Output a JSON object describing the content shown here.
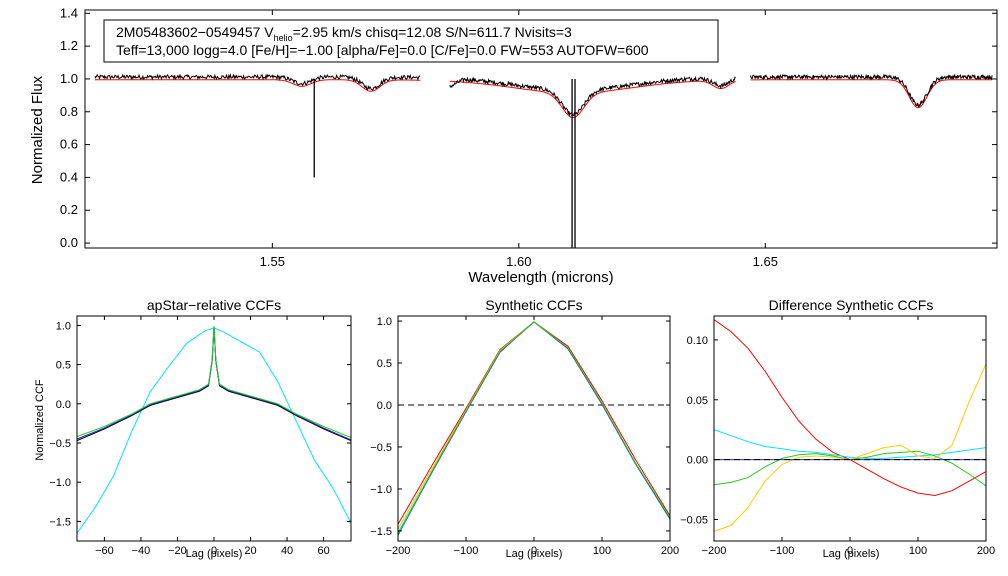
{
  "chart_data": [
    {
      "panel": "spectrum",
      "type": "line",
      "title": "",
      "xlabel": "Wavelength (microns)",
      "ylabel": "Normalized Flux",
      "xlim": [
        1.512,
        1.697
      ],
      "ylim": [
        -0.03,
        1.42
      ],
      "xticks": [
        1.55,
        1.6,
        1.65
      ],
      "xtick_labels": [
        "1.55",
        "1.60",
        "1.65"
      ],
      "yticks": [
        0.0,
        0.2,
        0.4,
        0.6,
        0.8,
        1.0,
        1.2,
        1.4
      ],
      "ytick_labels": [
        "0.0",
        "0.2",
        "0.4",
        "0.6",
        "0.8",
        "1.0",
        "1.2",
        "1.4"
      ],
      "annotation": {
        "line1_a": "2M05483602−0549457  V",
        "line1_sub": "helio",
        "line1_b": "=2.95 km/s  chisq=12.08  S/N=611.7  Nvisits=3",
        "line2": "Teff=13,000 logg=4.0 [Fe/H]=−1.00 [alpha/Fe]=0.0 [C/Fe]=0.0 FW=553 AUTOFW=600"
      },
      "chips": [
        {
          "name": "blue",
          "range": [
            1.514,
            1.58
          ]
        },
        {
          "name": "green",
          "range": [
            1.586,
            1.644
          ]
        },
        {
          "name": "red",
          "range": [
            1.647,
            1.696
          ]
        }
      ],
      "absorption_lines": [
        {
          "center": 1.556,
          "depth": 0.04,
          "width": 0.0018
        },
        {
          "center": 1.57,
          "depth": 0.07,
          "width": 0.0018
        },
        {
          "center": 1.611,
          "depth": 0.15,
          "width": 0.0022
        },
        {
          "center": 1.641,
          "depth": 0.05,
          "width": 0.0016
        },
        {
          "center": 1.681,
          "depth": 0.17,
          "width": 0.0018
        }
      ],
      "spikes": [
        {
          "x": 1.5585,
          "y": 0.4
        },
        {
          "x": 1.6108,
          "y": -0.03
        },
        {
          "x": 1.6114,
          "y": -0.03
        }
      ],
      "series": [
        {
          "name": "data",
          "color": "#000000"
        },
        {
          "name": "model",
          "color": "#ff0000"
        }
      ]
    },
    {
      "panel": "apstar_ccf",
      "type": "line",
      "title": "apStar−relative CCFs",
      "xlabel": "Lag (pixels)",
      "ylabel": "Normalized CCF",
      "xlim": [
        -75,
        75
      ],
      "ylim": [
        -1.75,
        1.12
      ],
      "xticks": [
        -60,
        -40,
        -20,
        0,
        20,
        40,
        60
      ],
      "xtick_labels": [
        "−60",
        "−40",
        "−20",
        "0",
        "20",
        "40",
        "60"
      ],
      "yticks": [
        -1.5,
        -1.0,
        -0.5,
        0.0,
        0.5,
        1.0
      ],
      "ytick_labels": [
        "−1.5",
        "−1.0",
        "−0.5",
        "0.0",
        "0.5",
        "1.0"
      ],
      "series": [
        {
          "name": "cyan",
          "color": "#00e5ff",
          "x": [
            -75,
            -65,
            -55,
            -45,
            -35,
            -25,
            -15,
            -5,
            0,
            5,
            15,
            25,
            35,
            45,
            55,
            65,
            75
          ],
          "y": [
            -1.65,
            -1.32,
            -0.92,
            -0.35,
            0.15,
            0.47,
            0.77,
            0.93,
            0.97,
            0.92,
            0.79,
            0.66,
            0.28,
            -0.22,
            -0.72,
            -1.07,
            -1.52
          ]
        },
        {
          "name": "black",
          "color": "#000000",
          "x": [
            -75,
            -60,
            -45,
            -35,
            -20,
            -8,
            -3,
            -1,
            0,
            1,
            3,
            8,
            20,
            35,
            45,
            60,
            75
          ],
          "y": [
            -0.47,
            -0.32,
            -0.15,
            -0.02,
            0.08,
            0.16,
            0.23,
            0.55,
            0.98,
            0.55,
            0.23,
            0.16,
            0.08,
            -0.02,
            -0.15,
            -0.32,
            -0.47
          ]
        },
        {
          "name": "blue",
          "color": "#2222cc",
          "x": [
            -75,
            -60,
            -45,
            -35,
            -20,
            -8,
            -3,
            -1,
            0,
            1,
            3,
            8,
            20,
            35,
            45,
            60,
            75
          ],
          "y": [
            -0.45,
            -0.31,
            -0.14,
            -0.01,
            0.09,
            0.17,
            0.24,
            0.56,
            0.99,
            0.56,
            0.24,
            0.17,
            0.09,
            -0.01,
            -0.14,
            -0.31,
            -0.46
          ]
        },
        {
          "name": "green",
          "color": "#22cc22",
          "x": [
            -75,
            -60,
            -45,
            -35,
            -20,
            -8,
            -3,
            -1,
            0,
            1,
            3,
            8,
            20,
            35,
            45,
            60,
            75
          ],
          "y": [
            -0.42,
            -0.29,
            -0.13,
            0.0,
            0.1,
            0.18,
            0.25,
            0.57,
            0.99,
            0.57,
            0.25,
            0.18,
            0.1,
            0.0,
            -0.13,
            -0.29,
            -0.43
          ]
        }
      ]
    },
    {
      "panel": "synthetic_ccf",
      "type": "line",
      "title": "Synthetic CCFs",
      "xlabel": "Lag (pixels)",
      "ylabel": "",
      "xlim": [
        -200,
        200
      ],
      "ylim": [
        -1.62,
        1.06
      ],
      "xticks": [
        -200,
        -100,
        0,
        100,
        200
      ],
      "xtick_labels": [
        "−200",
        "−100",
        "0",
        "100",
        "200"
      ],
      "yticks": [
        -1.5,
        -1.0,
        -0.5,
        0.0,
        0.5,
        1.0
      ],
      "ytick_labels": [
        "−1.5",
        "−1.0",
        "−0.5",
        "0.0",
        "0.5",
        "1.0"
      ],
      "reference_line": {
        "y": 0.0,
        "style": "dashed",
        "color": "#000000"
      },
      "series": [
        {
          "name": "red",
          "color": "#ff0000",
          "x": [
            -200,
            -150,
            -100,
            -50,
            0,
            50,
            100,
            150,
            200
          ],
          "y": [
            -1.42,
            -0.72,
            -0.04,
            0.66,
            0.99,
            0.7,
            0.05,
            -0.66,
            -1.32
          ]
        },
        {
          "name": "yellow",
          "color": "#ffcc00",
          "x": [
            -200,
            -150,
            -100,
            -50,
            0,
            50,
            100,
            150,
            200
          ],
          "y": [
            -1.48,
            -0.76,
            -0.06,
            0.65,
            0.99,
            0.68,
            0.02,
            -0.7,
            -1.37
          ]
        },
        {
          "name": "cyan",
          "color": "#00e5ff",
          "x": [
            -200,
            -150,
            -100,
            -50,
            0,
            50,
            100,
            150,
            200
          ],
          "y": [
            -1.52,
            -0.79,
            -0.07,
            0.64,
            0.99,
            0.67,
            0.01,
            -0.71,
            -1.36
          ]
        },
        {
          "name": "blue",
          "color": "#2222cc",
          "x": [
            -200,
            -150,
            -100,
            -50,
            0,
            50,
            100,
            150,
            200
          ],
          "y": [
            -1.55,
            -0.8,
            -0.08,
            0.63,
            0.99,
            0.67,
            0.01,
            -0.71,
            -1.35
          ]
        },
        {
          "name": "green",
          "color": "#22cc22",
          "x": [
            -200,
            -150,
            -100,
            -50,
            0,
            50,
            100,
            150,
            200
          ],
          "y": [
            -1.54,
            -0.79,
            -0.07,
            0.64,
            0.99,
            0.68,
            0.02,
            -0.7,
            -1.34
          ]
        }
      ]
    },
    {
      "panel": "difference_ccf",
      "type": "line",
      "title": "Difference Synthetic CCFs",
      "xlabel": "Lag (pixels)",
      "ylabel": "",
      "xlim": [
        -200,
        200
      ],
      "ylim": [
        -0.068,
        0.12
      ],
      "xticks": [
        -200,
        -100,
        0,
        100,
        200
      ],
      "xtick_labels": [
        "−200",
        "−100",
        "0",
        "100",
        "200"
      ],
      "yticks": [
        -0.05,
        0.0,
        0.05,
        0.1
      ],
      "ytick_labels": [
        "−0.05",
        "0.00",
        "0.05",
        "0.10"
      ],
      "series": [
        {
          "name": "red",
          "color": "#ff0000",
          "x": [
            -200,
            -175,
            -150,
            -125,
            -100,
            -75,
            -50,
            -25,
            0,
            25,
            50,
            75,
            100,
            125,
            150,
            175,
            200
          ],
          "y": [
            0.117,
            0.107,
            0.093,
            0.074,
            0.052,
            0.032,
            0.017,
            0.006,
            0.0,
            -0.008,
            -0.016,
            -0.023,
            -0.028,
            -0.03,
            -0.026,
            -0.018,
            -0.01
          ]
        },
        {
          "name": "cyan",
          "color": "#00e5ff",
          "x": [
            -200,
            -175,
            -150,
            -125,
            -100,
            -75,
            -50,
            -25,
            0,
            25,
            50,
            75,
            100,
            125,
            150,
            175,
            200
          ],
          "y": [
            0.025,
            0.02,
            0.015,
            0.011,
            0.009,
            0.007,
            0.006,
            0.004,
            0.002,
            0.001,
            0.001,
            0.002,
            0.003,
            0.004,
            0.006,
            0.008,
            0.01
          ]
        },
        {
          "name": "green",
          "color": "#22cc22",
          "x": [
            -200,
            -175,
            -150,
            -125,
            -100,
            -75,
            -50,
            -25,
            0,
            25,
            50,
            75,
            100,
            125,
            150,
            175,
            200
          ],
          "y": [
            -0.021,
            -0.019,
            -0.015,
            -0.006,
            0.001,
            0.004,
            0.005,
            0.003,
            0.0,
            0.002,
            0.005,
            0.006,
            0.007,
            0.003,
            -0.003,
            -0.012,
            -0.022
          ]
        },
        {
          "name": "yellow",
          "color": "#ffcc00",
          "x": [
            -200,
            -175,
            -150,
            -125,
            -100,
            -75,
            -50,
            -25,
            0,
            25,
            50,
            75,
            100,
            125,
            150,
            175,
            200
          ],
          "y": [
            -0.06,
            -0.055,
            -0.04,
            -0.018,
            -0.004,
            0.002,
            0.003,
            0.002,
            0.0,
            0.005,
            0.01,
            0.012,
            0.003,
            0.001,
            0.012,
            0.048,
            0.08
          ]
        },
        {
          "name": "blue",
          "color": "#2222cc",
          "x": [
            -200,
            200
          ],
          "y": [
            0.0,
            0.0
          ]
        },
        {
          "name": "dashed-zero",
          "color": "#000000",
          "dashed": true,
          "x": [
            -200,
            200
          ],
          "y": [
            0.0,
            0.0
          ]
        }
      ]
    }
  ]
}
